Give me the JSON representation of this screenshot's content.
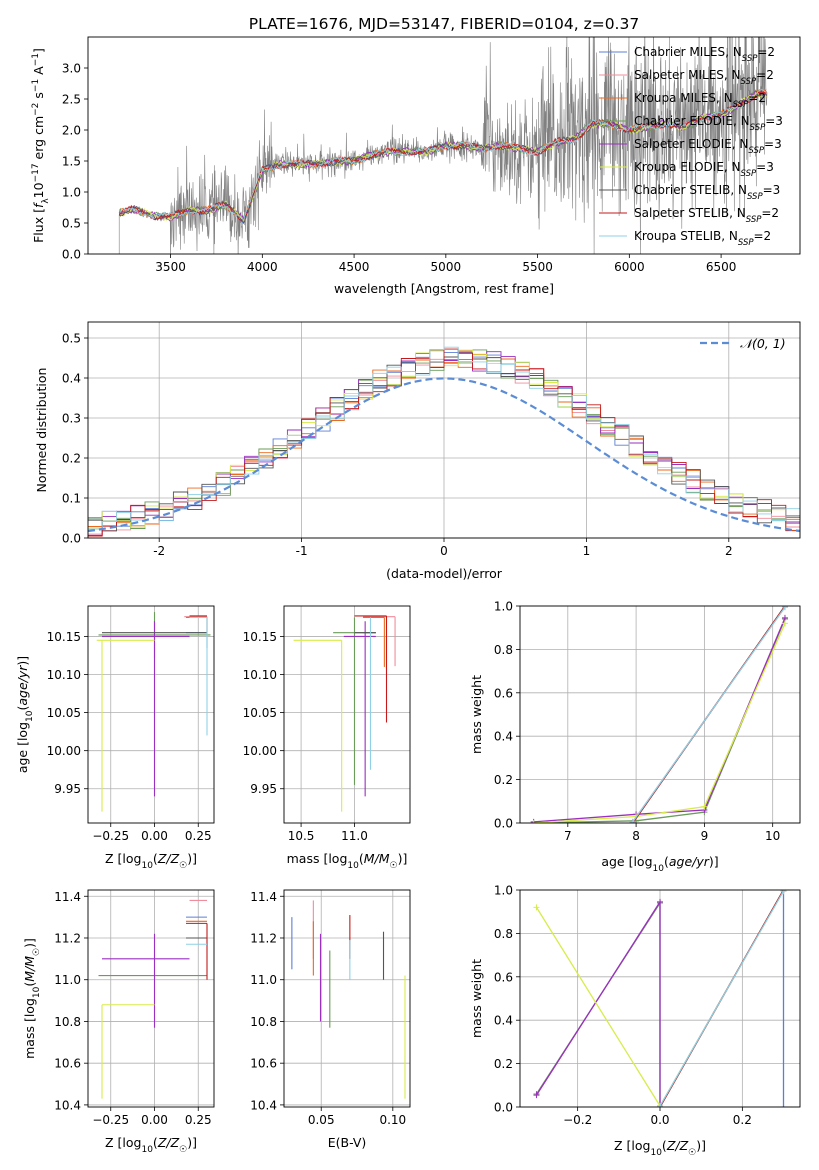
{
  "figure": {
    "title": "PLATE=1676, MJD=53147, FIBERID=0104, z=0.37"
  },
  "colors": {
    "Chabrier MILES": "#5b7fd6",
    "Salpeter MILES": "#f08c9b",
    "Kroupa MILES": "#ec6a1c",
    "Chabrier ELODIE": "#6a9c5a",
    "Salpeter ELODIE": "#9b2fc1",
    "Kroupa ELODIE": "#d8ec4a",
    "Chabrier STELIB": "#555555",
    "Salpeter STELIB": "#c41a1a",
    "Kroupa STELIB": "#8fd0e6",
    "data": "#808080",
    "gauss": "#5b8cd6"
  },
  "chart_data": [
    {
      "id": "spectrum",
      "type": "line",
      "title": "PLATE=1676, MJD=53147, FIBERID=0104, z=0.37",
      "xlabel": "wavelength [Angstrom, rest frame]",
      "ylabel": "Flux [f_λ 10^-17 erg cm^-2 s^-1 A^-1]",
      "xlim": [
        3050,
        6930
      ],
      "ylim": [
        0,
        3.5
      ],
      "xticks": [
        3500,
        4000,
        4500,
        5000,
        5500,
        6000,
        6500
      ],
      "yticks": [
        0.0,
        0.5,
        1.0,
        1.5,
        2.0,
        2.5,
        3.0
      ],
      "grid": true,
      "legend_position": "upper right",
      "legend": [
        {
          "label": "Chabrier MILES, N",
          "sub": "SSP",
          "tail": "=2",
          "key": "Chabrier MILES"
        },
        {
          "label": "Salpeter MILES, N",
          "sub": "SSP",
          "tail": "=2",
          "key": "Salpeter MILES"
        },
        {
          "label": "Kroupa MILES, N",
          "sub": "SSP",
          "tail": "=2",
          "key": "Kroupa MILES"
        },
        {
          "label": "Chabrier ELODIE, N",
          "sub": "SSP",
          "tail": "=3",
          "key": "Chabrier ELODIE"
        },
        {
          "label": "Salpeter ELODIE, N",
          "sub": "SSP",
          "tail": "=3",
          "key": "Salpeter ELODIE"
        },
        {
          "label": "Kroupa ELODIE, N",
          "sub": "SSP",
          "tail": "=3",
          "key": "Kroupa ELODIE"
        },
        {
          "label": "Chabrier STELIB, N",
          "sub": "SSP",
          "tail": "=3",
          "key": "Chabrier STELIB"
        },
        {
          "label": "Salpeter STELIB, N",
          "sub": "SSP",
          "tail": "=2",
          "key": "Salpeter STELIB"
        },
        {
          "label": "Kroupa STELIB, N",
          "sub": "SSP",
          "tail": "=2",
          "key": "Kroupa STELIB"
        }
      ],
      "continuum": [
        [
          3220,
          0.66
        ],
        [
          3300,
          0.72
        ],
        [
          3400,
          0.62
        ],
        [
          3500,
          0.6
        ],
        [
          3600,
          0.7
        ],
        [
          3700,
          0.7
        ],
        [
          3800,
          0.8
        ],
        [
          3900,
          0.55
        ],
        [
          3950,
          0.95
        ],
        [
          4000,
          1.35
        ],
        [
          4100,
          1.45
        ],
        [
          4200,
          1.45
        ],
        [
          4300,
          1.45
        ],
        [
          4400,
          1.5
        ],
        [
          4500,
          1.5
        ],
        [
          4600,
          1.6
        ],
        [
          4700,
          1.65
        ],
        [
          4800,
          1.65
        ],
        [
          4900,
          1.65
        ],
        [
          5000,
          1.75
        ],
        [
          5100,
          1.75
        ],
        [
          5200,
          1.7
        ],
        [
          5300,
          1.75
        ],
        [
          5400,
          1.7
        ],
        [
          5500,
          1.65
        ],
        [
          5600,
          1.8
        ],
        [
          5700,
          1.85
        ],
        [
          5800,
          2.1
        ],
        [
          5900,
          2.1
        ],
        [
          6000,
          2.0
        ],
        [
          6100,
          2.05
        ],
        [
          6200,
          2.1
        ],
        [
          6300,
          2.05
        ],
        [
          6400,
          2.2
        ],
        [
          6500,
          2.25
        ],
        [
          6600,
          2.4
        ],
        [
          6700,
          2.6
        ]
      ],
      "noise_segments": [
        [
          3200,
          3500,
          0.05
        ],
        [
          3500,
          4050,
          0.6
        ],
        [
          4050,
          5200,
          0.2
        ],
        [
          5200,
          5500,
          0.8
        ],
        [
          5500,
          6750,
          1.4
        ]
      ]
    },
    {
      "id": "residuals",
      "type": "step",
      "xlabel": "(data-model)/error",
      "ylabel": "Normed distribution",
      "xlim": [
        -2.5,
        2.5
      ],
      "ylim": [
        0,
        0.54
      ],
      "xticks": [
        -2,
        -1,
        0,
        1,
        2
      ],
      "yticks": [
        0.0,
        0.1,
        0.2,
        0.3,
        0.4,
        0.5
      ],
      "grid": true,
      "legend_position": "upper right",
      "gauss_label": "𝒩(0, 1)",
      "bin_width": 0.1,
      "bin_start": -2.5
    },
    {
      "id": "age_Z",
      "type": "errorbar",
      "xlabel": "Z [log10(Z/Z☉)]",
      "ylabel": "age [log10(age/yr)]",
      "xlim": [
        -0.38,
        0.34
      ],
      "ylim": [
        9.905,
        10.19
      ],
      "xticks": [
        -0.25,
        0.0,
        0.25
      ],
      "xtick_labels": [
        "−0.25",
        "0.00",
        "0.25"
      ],
      "yticks": [
        9.95,
        10.0,
        10.05,
        10.1,
        10.15
      ],
      "grid": true,
      "points": [
        {
          "key": "Chabrier MILES",
          "x": 0.3,
          "xerr": [
            0.12,
            0.0
          ],
          "y": 10.155,
          "yerr": [
            0.02,
            0.0
          ]
        },
        {
          "key": "Salpeter MILES",
          "x": 0.3,
          "xerr": [
            0.13,
            0.0
          ],
          "y": 10.176,
          "yerr": [
            0.02,
            0.0
          ]
        },
        {
          "key": "Kroupa MILES",
          "x": 0.3,
          "xerr": [
            0.12,
            0.0
          ],
          "y": 10.175,
          "yerr": [
            0.02,
            0.0
          ]
        },
        {
          "key": "Chabrier ELODIE",
          "x": 0.0,
          "xerr": [
            0.32,
            0.32
          ],
          "y": 10.152,
          "yerr": [
            0.03,
            0.03
          ]
        },
        {
          "key": "Salpeter ELODIE",
          "x": 0.0,
          "xerr": [
            0.3,
            0.2
          ],
          "y": 10.15,
          "yerr": [
            0.21,
            0.02
          ]
        },
        {
          "key": "Kroupa ELODIE",
          "x": -0.3,
          "xerr": [
            0.03,
            0.3
          ],
          "y": 10.145,
          "yerr": [
            0.225,
            0.0
          ]
        },
        {
          "key": "Chabrier STELIB",
          "x": 0.0,
          "xerr": [
            0.3,
            0.3
          ],
          "y": 10.155,
          "yerr": [
            0.0,
            0.0
          ]
        },
        {
          "key": "Salpeter STELIB",
          "x": 0.3,
          "xerr": [
            0.1,
            0.0
          ],
          "y": 10.177,
          "yerr": [
            0.0,
            0.0
          ]
        },
        {
          "key": "Kroupa STELIB",
          "x": 0.3,
          "xerr": [
            0.1,
            0.0
          ],
          "y": 10.175,
          "yerr": [
            0.155,
            0.0
          ]
        }
      ]
    },
    {
      "id": "age_mass",
      "type": "errorbar",
      "xlabel": "mass [log10(M/M☉)]",
      "ylabel": "",
      "xlim": [
        10.34,
        11.52
      ],
      "ylim": [
        9.905,
        10.19
      ],
      "xticks": [
        10.5,
        11.0
      ],
      "xtick_labels": [
        "10.5",
        "11.0"
      ],
      "yticks": [
        9.95,
        10.0,
        10.05,
        10.1,
        10.15
      ],
      "grid": true,
      "points": [
        {
          "key": "Chabrier MILES",
          "x": 11.2,
          "xerr": [
            0.12,
            0.0
          ],
          "y": 10.155,
          "yerr": [
            0.0,
            0.0
          ]
        },
        {
          "key": "Salpeter MILES",
          "x": 11.38,
          "xerr": [
            0.3,
            0.0
          ],
          "y": 10.176,
          "yerr": [
            0.065,
            0.0
          ]
        },
        {
          "key": "Kroupa MILES",
          "x": 11.28,
          "xerr": [
            0.2,
            0.0
          ],
          "y": 10.175,
          "yerr": [
            0.065,
            0.0
          ]
        },
        {
          "key": "Chabrier ELODIE",
          "x": 11.0,
          "xerr": [
            0.2,
            0.2
          ],
          "y": 10.155,
          "yerr": [
            0.2,
            0.02
          ]
        },
        {
          "key": "Salpeter ELODIE",
          "x": 11.1,
          "xerr": [
            0.2,
            0.1
          ],
          "y": 10.15,
          "yerr": [
            0.21,
            0.02
          ]
        },
        {
          "key": "Kroupa ELODIE",
          "x": 10.88,
          "xerr": [
            0.45,
            0.0
          ],
          "y": 10.145,
          "yerr": [
            0.225,
            0.0
          ]
        },
        {
          "key": "Chabrier STELIB",
          "x": 11.2,
          "xerr": [
            0.2,
            0.0
          ],
          "y": 10.155,
          "yerr": [
            0.0,
            0.0
          ]
        },
        {
          "key": "Salpeter STELIB",
          "x": 11.3,
          "xerr": [
            0.3,
            0.0
          ],
          "y": 10.177,
          "yerr": [
            0.14,
            0.0
          ]
        },
        {
          "key": "Kroupa STELIB",
          "x": 11.15,
          "xerr": [
            0.0,
            0.0
          ],
          "y": 10.175,
          "yerr": [
            0.2,
            0.0
          ]
        }
      ]
    },
    {
      "id": "massweight_age",
      "type": "line",
      "xlabel": "age [log10(age/yr)]",
      "ylabel": "mass weight",
      "xlim": [
        6.3,
        10.4
      ],
      "ylim": [
        0,
        1
      ],
      "xticks": [
        7,
        8,
        9,
        10
      ],
      "yticks": [
        0.0,
        0.2,
        0.4,
        0.6,
        0.8,
        1.0
      ],
      "grid": true,
      "series": [
        {
          "key": "Chabrier MILES",
          "x": [
            7.95,
            10.18
          ],
          "y": [
            0.0,
            1.0
          ]
        },
        {
          "key": "Salpeter MILES",
          "x": [
            7.95,
            10.18
          ],
          "y": [
            0.005,
            0.995
          ]
        },
        {
          "key": "Kroupa MILES",
          "x": [
            7.95,
            10.18
          ],
          "y": [
            0.0,
            1.0
          ]
        },
        {
          "key": "Chabrier ELODIE",
          "x": [
            6.5,
            8.0,
            9.0,
            10.18
          ],
          "y": [
            0.0,
            0.01,
            0.05,
            0.94
          ]
        },
        {
          "key": "Salpeter ELODIE",
          "x": [
            6.5,
            8.0,
            9.0,
            10.18
          ],
          "y": [
            0.005,
            0.04,
            0.06,
            0.945
          ]
        },
        {
          "key": "Kroupa ELODIE",
          "x": [
            6.5,
            8.0,
            9.0,
            10.18
          ],
          "y": [
            0.0,
            0.03,
            0.075,
            0.92
          ]
        },
        {
          "key": "Chabrier STELIB",
          "x": [
            7.95,
            10.18
          ],
          "y": [
            0.0,
            1.0
          ]
        },
        {
          "key": "Salpeter STELIB",
          "x": [
            7.95,
            10.18
          ],
          "y": [
            0.0,
            1.0
          ]
        },
        {
          "key": "Kroupa STELIB",
          "x": [
            7.95,
            10.18
          ],
          "y": [
            0.005,
            0.995
          ]
        }
      ]
    },
    {
      "id": "mass_Z",
      "type": "errorbar",
      "xlabel": "Z [log10(Z/Z☉)]",
      "ylabel": "mass [log10(M/M☉)]",
      "xlim": [
        -0.38,
        0.34
      ],
      "ylim": [
        10.39,
        11.43
      ],
      "xticks": [
        -0.25,
        0.0,
        0.25
      ],
      "xtick_labels": [
        "−0.25",
        "0.00",
        "0.25"
      ],
      "yticks": [
        10.4,
        10.6,
        10.8,
        11.0,
        11.2,
        11.4
      ],
      "grid": true,
      "points": [
        {
          "key": "Chabrier MILES",
          "x": 0.3,
          "xerr": [
            0.12,
            0.0
          ],
          "y": 11.3,
          "yerr": [
            0.0,
            0.0
          ]
        },
        {
          "key": "Salpeter MILES",
          "x": 0.3,
          "xerr": [
            0.1,
            0.0
          ],
          "y": 11.38,
          "yerr": [
            0.0,
            0.0
          ]
        },
        {
          "key": "Kroupa MILES",
          "x": 0.3,
          "xerr": [
            0.12,
            0.0
          ],
          "y": 11.28,
          "yerr": [
            0.0,
            0.0
          ]
        },
        {
          "key": "Chabrier ELODIE",
          "x": 0.0,
          "xerr": [
            0.32,
            0.3
          ],
          "y": 11.02,
          "yerr": [
            0.0,
            0.0
          ]
        },
        {
          "key": "Salpeter ELODIE",
          "x": 0.0,
          "xerr": [
            0.3,
            0.2
          ],
          "y": 11.1,
          "yerr": [
            0.33,
            0.12
          ]
        },
        {
          "key": "Kroupa ELODIE",
          "x": -0.3,
          "xerr": [
            0.0,
            0.3
          ],
          "y": 10.88,
          "yerr": [
            0.45,
            0.0
          ]
        },
        {
          "key": "Chabrier STELIB",
          "x": 0.3,
          "xerr": [
            0.12,
            0.0
          ],
          "y": 11.2,
          "yerr": [
            0.0,
            0.0
          ]
        },
        {
          "key": "Salpeter STELIB",
          "x": 0.3,
          "xerr": [
            0.12,
            0.0
          ],
          "y": 11.27,
          "yerr": [
            0.27,
            0.0
          ]
        },
        {
          "key": "Kroupa STELIB",
          "x": 0.3,
          "xerr": [
            0.12,
            0.0
          ],
          "y": 11.17,
          "yerr": [
            0.0,
            0.0
          ]
        }
      ]
    },
    {
      "id": "mass_ebv",
      "type": "errorbar",
      "xlabel": "E(B-V)",
      "ylabel": "",
      "xlim": [
        0.024,
        0.112
      ],
      "ylim": [
        10.39,
        11.43
      ],
      "xticks": [
        0.05,
        0.1
      ],
      "xtick_labels": [
        "0.05",
        "0.10"
      ],
      "yticks": [
        10.4,
        10.6,
        10.8,
        11.0,
        11.2,
        11.4
      ],
      "grid": true,
      "points": [
        {
          "key": "Chabrier MILES",
          "x": 0.0295,
          "y": 11.2,
          "yerr": [
            0.15,
            0.1
          ]
        },
        {
          "key": "Salpeter MILES",
          "x": 0.0445,
          "y": 11.2,
          "yerr": [
            0.1,
            0.18
          ]
        },
        {
          "key": "Kroupa MILES",
          "x": 0.0445,
          "y": 11.15,
          "yerr": [
            0.13,
            0.13
          ]
        },
        {
          "key": "Chabrier ELODIE",
          "x": 0.056,
          "y": 10.95,
          "yerr": [
            0.18,
            0.19
          ]
        },
        {
          "key": "Salpeter ELODIE",
          "x": 0.0495,
          "y": 11.1,
          "yerr": [
            0.3,
            0.12
          ]
        },
        {
          "key": "Kroupa ELODIE",
          "x": 0.1085,
          "y": 10.72,
          "yerr": [
            0.29,
            0.3
          ]
        },
        {
          "key": "Chabrier STELIB",
          "x": 0.0935,
          "y": 11.12,
          "yerr": [
            0.12,
            0.11
          ]
        },
        {
          "key": "Salpeter STELIB",
          "x": 0.07,
          "y": 11.2,
          "yerr": [
            0.1,
            0.11
          ]
        },
        {
          "key": "Kroupa STELIB",
          "x": 0.07,
          "y": 11.1,
          "yerr": [
            0.1,
            0.09
          ]
        }
      ]
    },
    {
      "id": "massweight_Z",
      "type": "line",
      "xlabel": "Z [log10(Z/Z☉)]",
      "ylabel": "mass weight",
      "xlim": [
        -0.34,
        0.34
      ],
      "ylim": [
        0,
        1
      ],
      "xticks": [
        -0.2,
        0.0,
        0.2
      ],
      "xtick_labels": [
        "−0.2",
        "0.0",
        "0.2"
      ],
      "yticks": [
        0.0,
        0.2,
        0.4,
        0.6,
        0.8,
        1.0
      ],
      "grid": true,
      "series": [
        {
          "key": "Chabrier MILES",
          "x": [
            0.3,
            0.3
          ],
          "y": [
            0.0,
            1.0
          ]
        },
        {
          "key": "Salpeter MILES",
          "x": [
            0.0,
            0.3
          ],
          "y": [
            0.0,
            1.0
          ]
        },
        {
          "key": "Kroupa MILES",
          "x": [
            0.0,
            0.3
          ],
          "y": [
            0.0,
            1.0
          ]
        },
        {
          "key": "Chabrier ELODIE",
          "x": [
            -0.3,
            0.0,
            0.0
          ],
          "y": [
            0.06,
            0.94,
            0.0
          ]
        },
        {
          "key": "Salpeter ELODIE",
          "x": [
            -0.3,
            0.0,
            0.0
          ],
          "y": [
            0.055,
            0.945,
            0.0
          ]
        },
        {
          "key": "Kroupa ELODIE",
          "x": [
            -0.3,
            0.0,
            0.3
          ],
          "y": [
            0.92,
            0.005,
            0.995
          ]
        },
        {
          "key": "Chabrier STELIB",
          "x": [
            0.0,
            0.3
          ],
          "y": [
            0.0,
            1.0
          ]
        },
        {
          "key": "Salpeter STELIB",
          "x": [
            0.0,
            0.3
          ],
          "y": [
            0.0,
            1.0
          ]
        },
        {
          "key": "Kroupa STELIB",
          "x": [
            0.0,
            0.3
          ],
          "y": [
            0.005,
            0.995
          ]
        }
      ]
    }
  ]
}
